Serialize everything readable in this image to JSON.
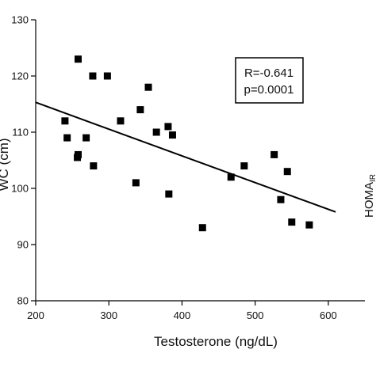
{
  "chart_data": {
    "type": "scatter",
    "xlabel": "Testosterone (ng/dL)",
    "ylabel": "WC (cm)",
    "xlim": [
      200,
      650
    ],
    "ylim": [
      80,
      130
    ],
    "xticks": [
      200,
      300,
      400,
      500,
      600
    ],
    "yticks": [
      80,
      90,
      100,
      110,
      120,
      130
    ],
    "points": [
      {
        "x": 240,
        "y": 112
      },
      {
        "x": 243,
        "y": 109
      },
      {
        "x": 257,
        "y": 105.5
      },
      {
        "x": 258,
        "y": 106
      },
      {
        "x": 258,
        "y": 123
      },
      {
        "x": 269,
        "y": 109
      },
      {
        "x": 278,
        "y": 120
      },
      {
        "x": 279,
        "y": 104
      },
      {
        "x": 298,
        "y": 120
      },
      {
        "x": 316,
        "y": 112
      },
      {
        "x": 337,
        "y": 101
      },
      {
        "x": 343,
        "y": 114
      },
      {
        "x": 354,
        "y": 118
      },
      {
        "x": 365,
        "y": 110
      },
      {
        "x": 381,
        "y": 111
      },
      {
        "x": 382,
        "y": 99
      },
      {
        "x": 387,
        "y": 109.5
      },
      {
        "x": 428,
        "y": 93
      },
      {
        "x": 467,
        "y": 102
      },
      {
        "x": 485,
        "y": 104
      },
      {
        "x": 526,
        "y": 106
      },
      {
        "x": 535,
        "y": 98
      },
      {
        "x": 544,
        "y": 103
      },
      {
        "x": 550,
        "y": 94
      },
      {
        "x": 574,
        "y": 93.5
      }
    ],
    "regression_line": {
      "x": [
        200,
        610
      ],
      "y": [
        115.3,
        95.8
      ]
    },
    "annotation": {
      "lines": [
        "R=-0.641",
        "p=0.0001"
      ]
    },
    "grid": false
  },
  "side_label": {
    "text": "HOMA",
    "subscript": "IR"
  },
  "colors": {
    "marker": "#000000",
    "line": "#000000",
    "axis": "#000000",
    "background": "#ffffff"
  }
}
